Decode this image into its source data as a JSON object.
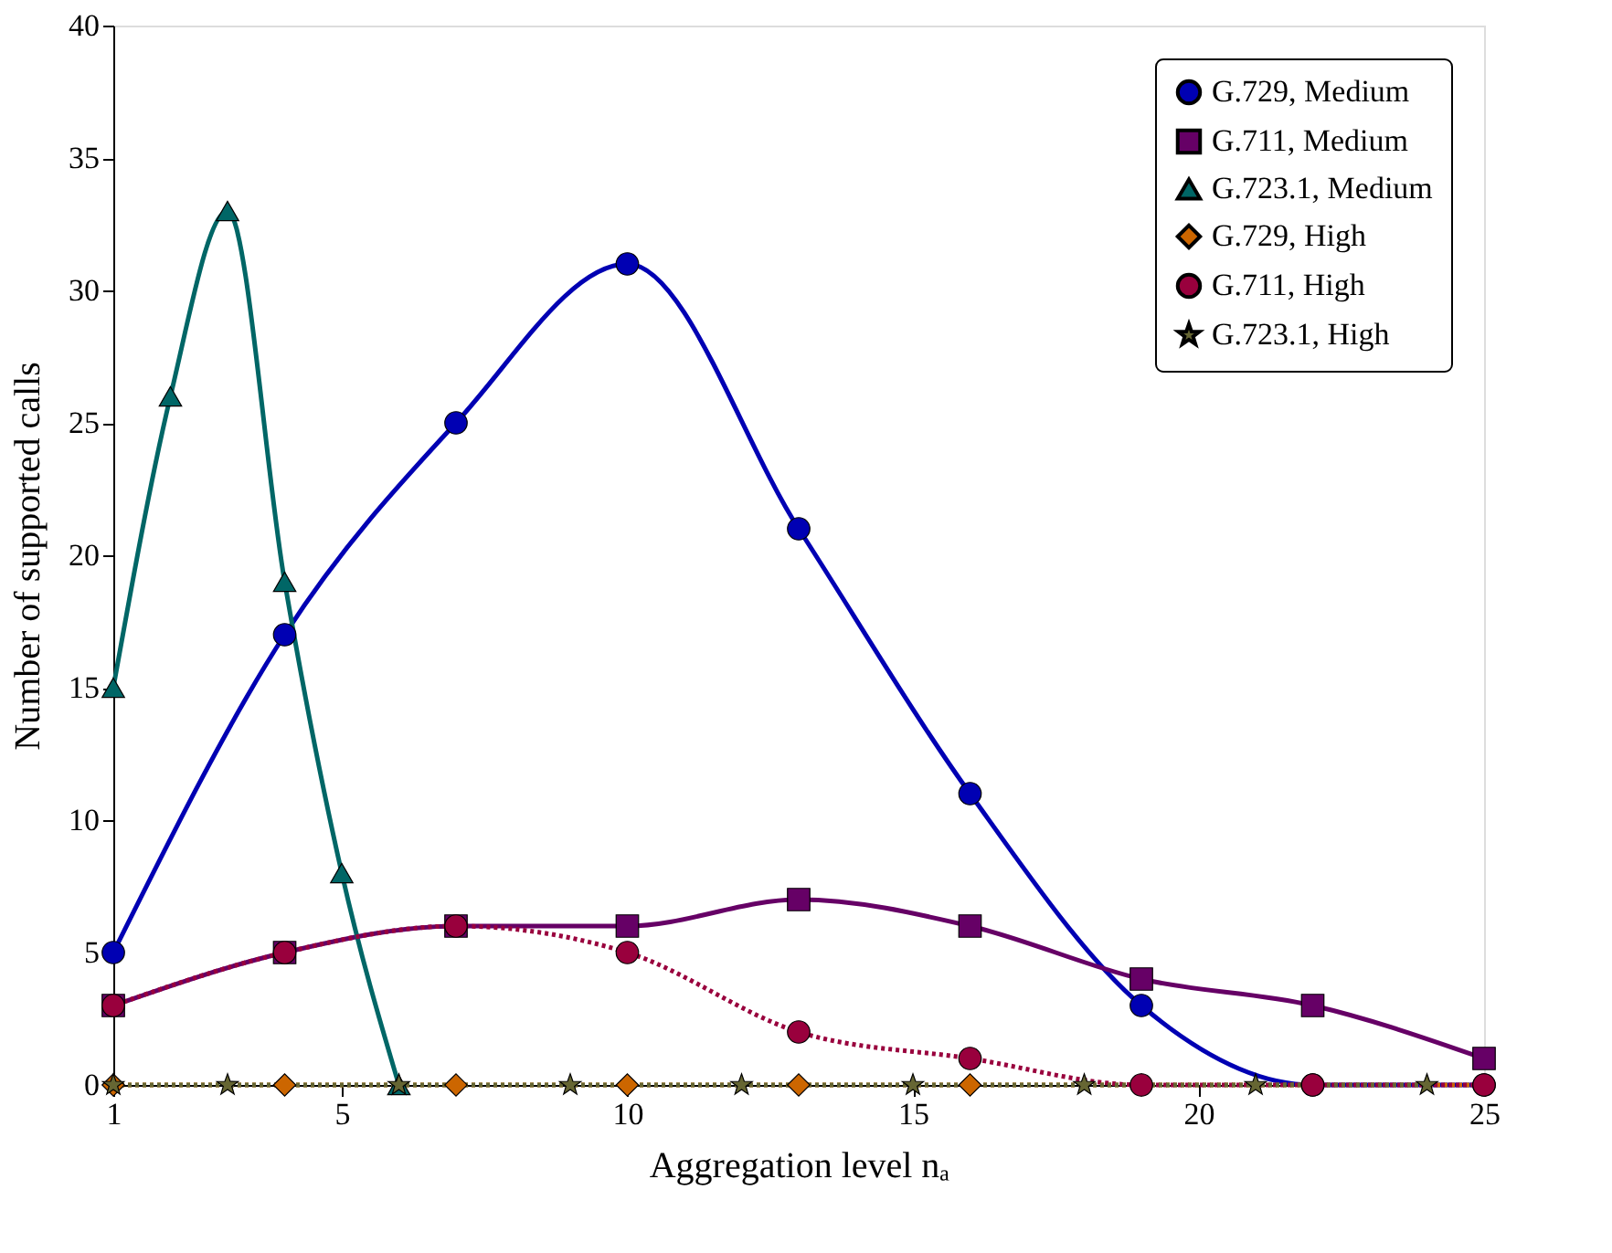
{
  "chart_data": {
    "type": "line",
    "xlabel": "Aggregation level nₐ",
    "ylabel": "Number of supported calls",
    "xlim": [
      1,
      25
    ],
    "ylim": [
      0,
      40
    ],
    "xticks": [
      1,
      5,
      10,
      15,
      20,
      25
    ],
    "yticks": [
      0,
      5,
      10,
      15,
      20,
      25,
      30,
      35,
      40
    ],
    "grid": false,
    "legend": "top right",
    "series": [
      {
        "name": "G.729, Medium",
        "color": "#0000b3",
        "marker": "circle",
        "line_style": "solid",
        "x": [
          1,
          4,
          7,
          10,
          13,
          16,
          19,
          22,
          25
        ],
        "values": [
          5,
          17,
          25,
          31,
          21,
          11,
          3,
          0,
          0
        ]
      },
      {
        "name": "G.711, Medium",
        "color": "#660066",
        "marker": "square",
        "line_style": "solid",
        "x": [
          1,
          4,
          7,
          10,
          13,
          16,
          19,
          22,
          25
        ],
        "values": [
          3,
          5,
          6,
          6,
          7,
          6,
          4,
          3,
          1
        ]
      },
      {
        "name": "G.723.1, Medium",
        "color": "#006666",
        "marker": "triangle",
        "line_style": "solid",
        "x": [
          1,
          2,
          3,
          4,
          5,
          6
        ],
        "values": [
          15,
          26,
          33,
          19,
          8,
          0
        ]
      },
      {
        "name": "G.729, High",
        "color": "#cc6600",
        "marker": "diamond",
        "line_style": "dotted",
        "x": [
          1,
          4,
          7,
          10,
          13,
          16,
          19,
          22,
          25
        ],
        "values": [
          0,
          0,
          0,
          0,
          0,
          0,
          0,
          0,
          0
        ]
      },
      {
        "name": "G.711, High",
        "color": "#99003d",
        "marker": "circle",
        "line_style": "dotted",
        "x": [
          1,
          4,
          7,
          10,
          13,
          16,
          19,
          22,
          25
        ],
        "values": [
          3,
          5,
          6,
          5,
          2,
          1,
          0,
          0,
          0
        ]
      },
      {
        "name": "G.723.1, High",
        "color": "#666633",
        "marker": "star",
        "line_style": "dotted",
        "x": [
          1,
          3,
          6,
          9,
          12,
          15,
          18,
          21,
          24
        ],
        "values": [
          0,
          0,
          0,
          0,
          0,
          0,
          0,
          0,
          0
        ]
      }
    ]
  }
}
